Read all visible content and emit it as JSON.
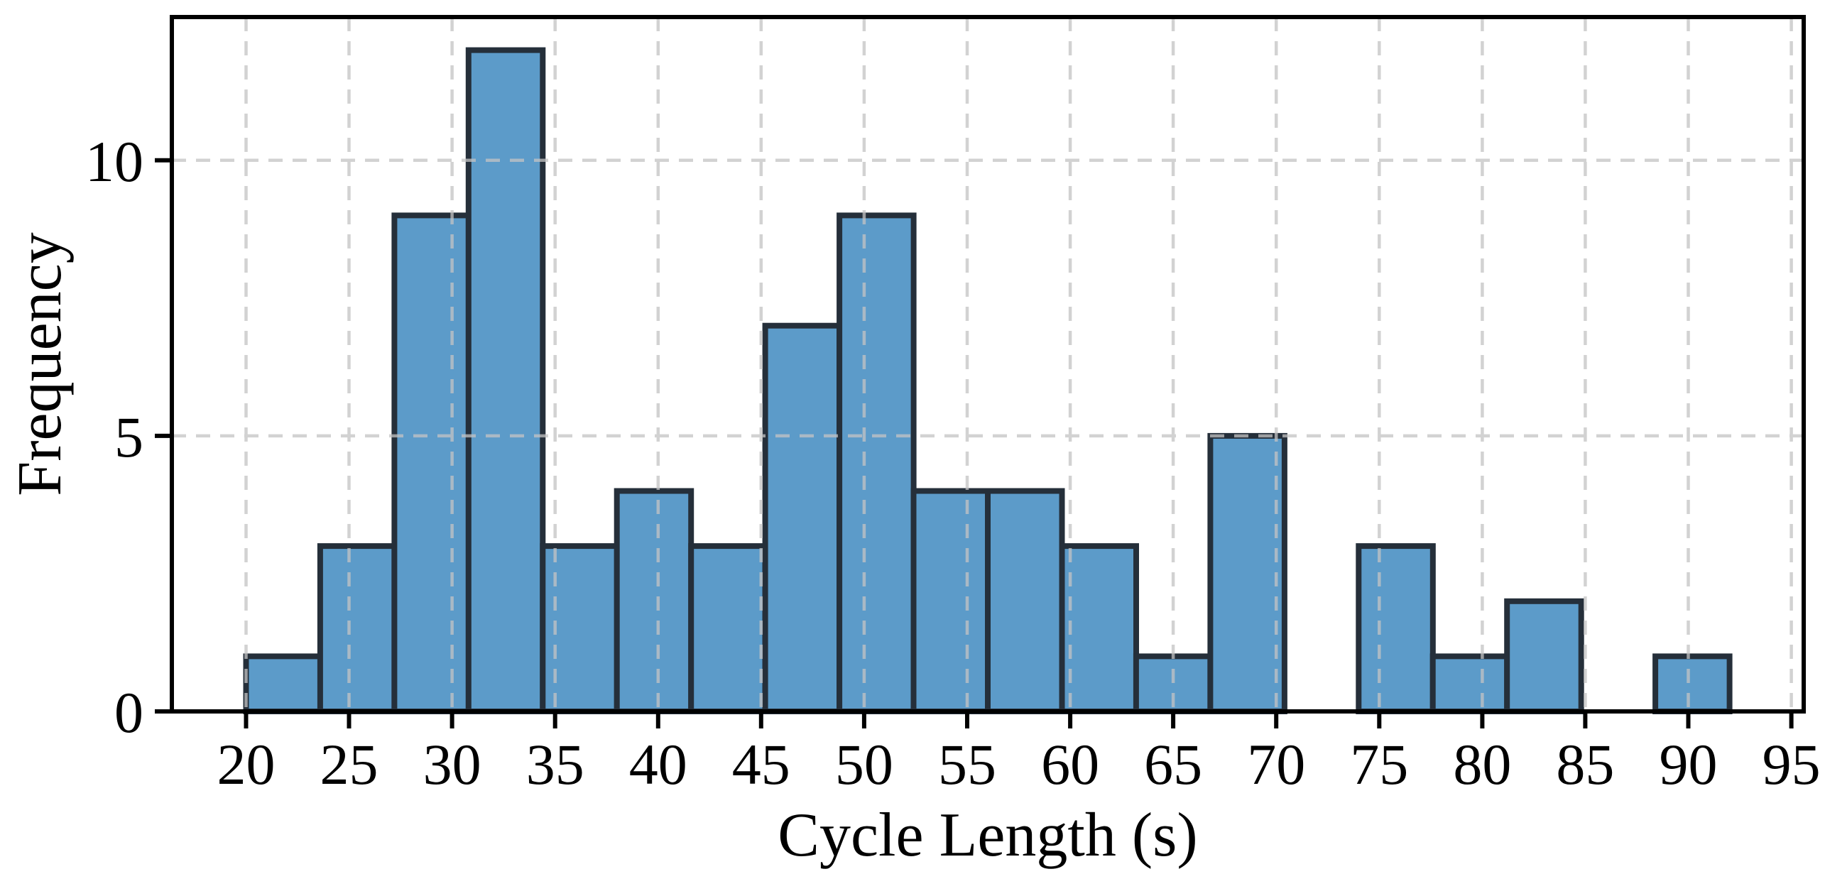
{
  "figure": {
    "background_color": "#ffffff",
    "title": ""
  },
  "chart_data": {
    "type": "bar",
    "subtype": "histogram",
    "title": "",
    "xlabel": "Cycle Length (s)",
    "ylabel": "Frequency",
    "bin_edges": [
      20.0,
      23.6,
      27.2,
      30.8,
      34.4,
      38.0,
      41.6,
      45.2,
      48.8,
      52.4,
      56.0,
      59.6,
      63.2,
      66.8,
      70.4,
      74.0,
      77.6,
      81.2,
      84.8,
      88.4,
      92.0
    ],
    "counts": [
      1,
      3,
      9,
      12,
      3,
      4,
      3,
      7,
      9,
      4,
      4,
      3,
      1,
      5,
      0,
      3,
      1,
      2,
      0,
      1
    ],
    "total_observations": 75,
    "xticks": [
      20,
      25,
      30,
      35,
      40,
      45,
      50,
      55,
      60,
      65,
      70,
      75,
      80,
      85,
      90,
      95
    ],
    "xtick_labels": [
      "20",
      "25",
      "30",
      "35",
      "40",
      "45",
      "50",
      "55",
      "60",
      "65",
      "70",
      "75",
      "80",
      "85",
      "90",
      "95"
    ],
    "yticks": [
      0,
      5,
      10
    ],
    "ytick_labels": [
      "0",
      "5",
      "10"
    ],
    "xlim": [
      16.4,
      95.6
    ],
    "ylim": [
      0,
      12.6
    ],
    "grid": {
      "visible": true,
      "style": "dashed",
      "axes": "both"
    },
    "legend": {
      "visible": false
    },
    "colors": {
      "bar_fill": "#5c9bc9",
      "bar_edge": "#252f3a",
      "grid_line": "#c4c4c4",
      "axis_line": "#000000",
      "tick_label": "#000000"
    }
  }
}
